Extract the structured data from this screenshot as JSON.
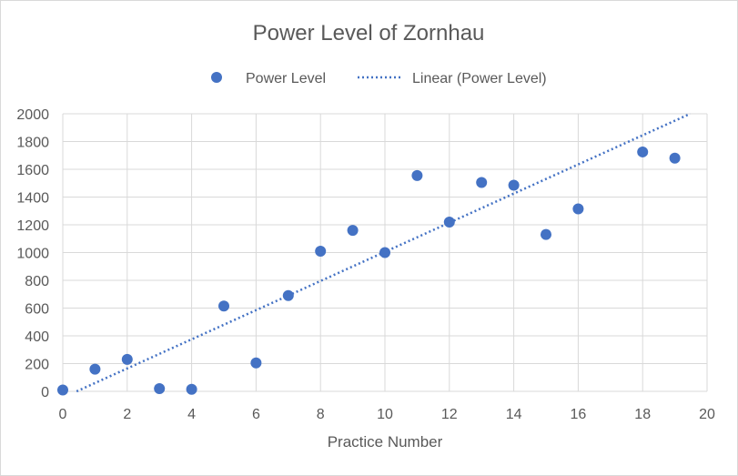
{
  "chart_data": {
    "type": "scatter",
    "title": "Power Level of Zornhau",
    "xlabel": "Practice Number",
    "ylabel": "",
    "xlim": [
      0,
      20
    ],
    "ylim": [
      0,
      2000
    ],
    "x_ticks": [
      "0",
      "2",
      "4",
      "6",
      "8",
      "10",
      "12",
      "14",
      "16",
      "18",
      "20"
    ],
    "y_ticks": [
      "0",
      "200",
      "400",
      "600",
      "800",
      "1000",
      "1200",
      "1400",
      "1600",
      "1800",
      "2000"
    ],
    "grid": true,
    "legend_position": "top",
    "series": [
      {
        "name": "Power Level",
        "color": "#4472c4",
        "marker": "circle",
        "points": [
          {
            "x": 0,
            "y": 10
          },
          {
            "x": 1,
            "y": 160
          },
          {
            "x": 2,
            "y": 230
          },
          {
            "x": 3,
            "y": 20
          },
          {
            "x": 4,
            "y": 15
          },
          {
            "x": 5,
            "y": 615
          },
          {
            "x": 6,
            "y": 205
          },
          {
            "x": 7,
            "y": 690
          },
          {
            "x": 8,
            "y": 1010
          },
          {
            "x": 9,
            "y": 1160
          },
          {
            "x": 10,
            "y": 1000
          },
          {
            "x": 11,
            "y": 1555
          },
          {
            "x": 12,
            "y": 1220
          },
          {
            "x": 13,
            "y": 1505
          },
          {
            "x": 14,
            "y": 1485
          },
          {
            "x": 15,
            "y": 1130
          },
          {
            "x": 16,
            "y": 1315
          },
          {
            "x": 18,
            "y": 1725
          },
          {
            "x": 19,
            "y": 1680
          }
        ]
      }
    ],
    "trendline": {
      "name": "Linear (Power Level)",
      "type": "linear",
      "style": "dotted",
      "color": "#4472c4",
      "x": [
        0,
        20
      ],
      "y": [
        -45,
        2055
      ]
    }
  }
}
